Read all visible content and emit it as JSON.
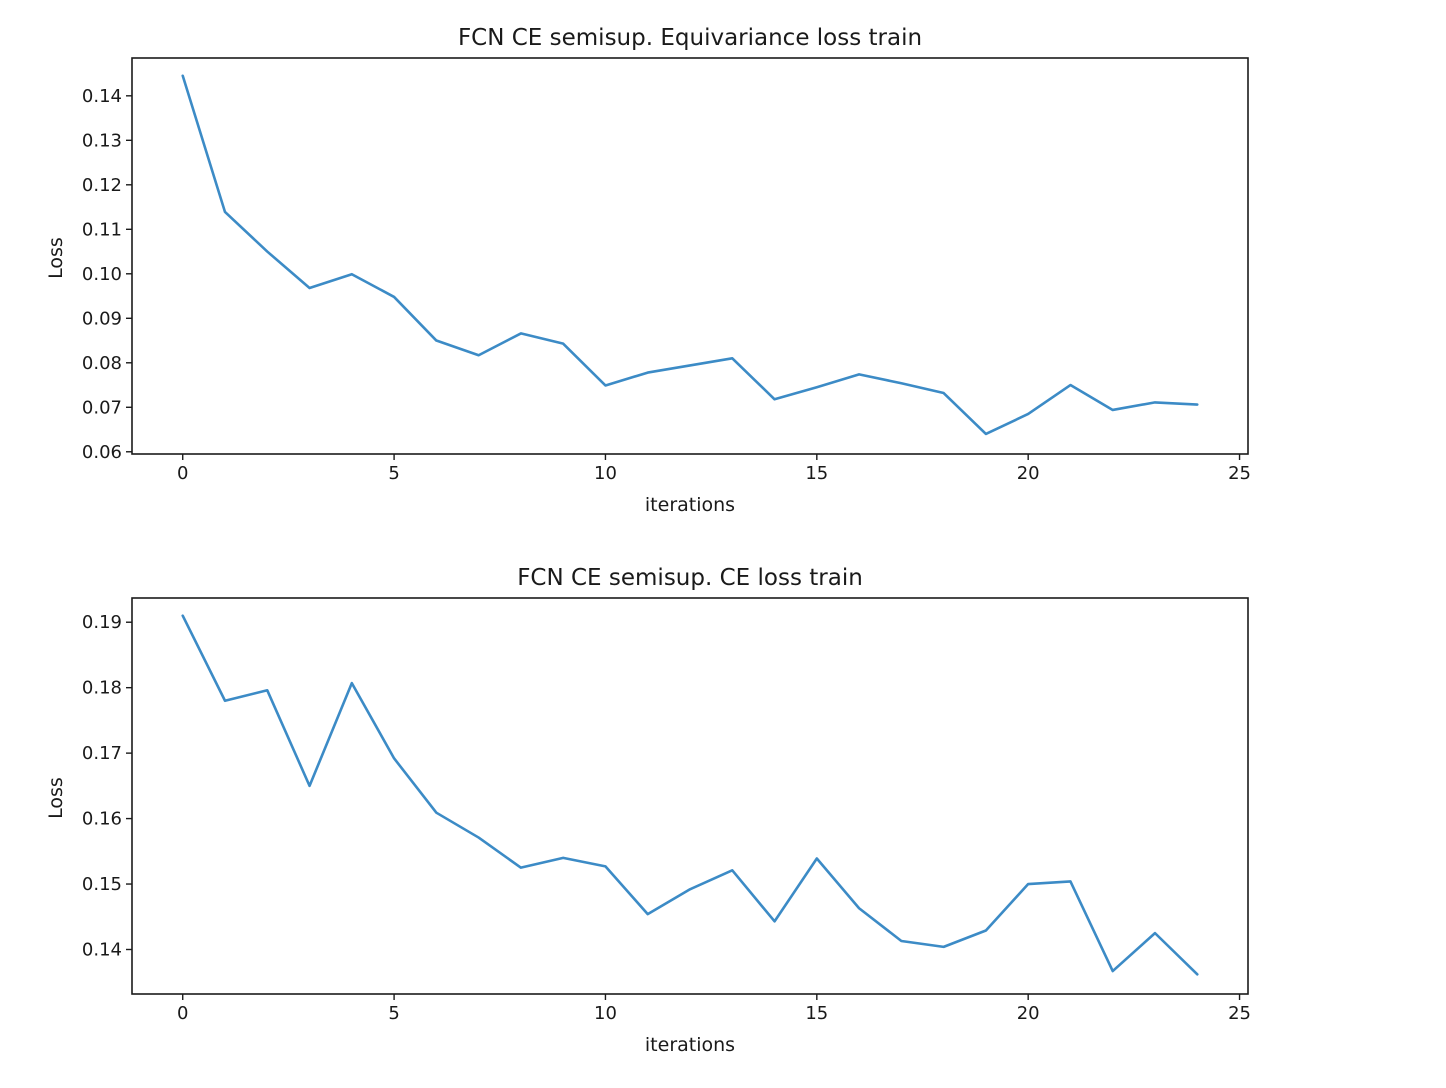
{
  "colors": {
    "line": "#3c8bc6",
    "axis": "#1a1a1a",
    "background": "#ffffff"
  },
  "chart_data": [
    {
      "type": "line",
      "title": "FCN CE semisup. Equivariance loss train",
      "xlabel": "iterations",
      "ylabel": "Loss",
      "xlim": [
        -1.2,
        25.2
      ],
      "ylim": [
        0.0595,
        0.1485
      ],
      "xticks": [
        0,
        5,
        10,
        15,
        20,
        25
      ],
      "xtick_labels": [
        "0",
        "5",
        "10",
        "15",
        "20",
        "25"
      ],
      "yticks": [
        0.06,
        0.07,
        0.08,
        0.09,
        0.1,
        0.11,
        0.12,
        0.13,
        0.14
      ],
      "ytick_labels": [
        "0.06",
        "0.07",
        "0.08",
        "0.09",
        "0.10",
        "0.11",
        "0.12",
        "0.13",
        "0.14"
      ],
      "grid": false,
      "series": [
        {
          "x": [
            0,
            1,
            2,
            3,
            4,
            5,
            6,
            7,
            8,
            9,
            10,
            11,
            12,
            13,
            14,
            15,
            16,
            17,
            18,
            19,
            20,
            21,
            22,
            23,
            24
          ],
          "values": [
            0.1445,
            0.1139,
            0.105,
            0.0968,
            0.0999,
            0.0948,
            0.085,
            0.0817,
            0.0866,
            0.0843,
            0.0749,
            0.0778,
            0.0794,
            0.081,
            0.0718,
            0.0745,
            0.0774,
            0.0754,
            0.0732,
            0.064,
            0.0685,
            0.075,
            0.0694,
            0.0711,
            0.0706
          ]
        }
      ]
    },
    {
      "type": "line",
      "title": "FCN CE semisup. CE loss train",
      "xlabel": "iterations",
      "ylabel": "Loss",
      "xlim": [
        -1.2,
        25.2
      ],
      "ylim": [
        0.1332,
        0.1937
      ],
      "xticks": [
        0,
        5,
        10,
        15,
        20,
        25
      ],
      "xtick_labels": [
        "0",
        "5",
        "10",
        "15",
        "20",
        "25"
      ],
      "yticks": [
        0.14,
        0.15,
        0.16,
        0.17,
        0.18,
        0.19
      ],
      "ytick_labels": [
        "0.14",
        "0.15",
        "0.16",
        "0.17",
        "0.18",
        "0.19"
      ],
      "grid": false,
      "series": [
        {
          "x": [
            0,
            1,
            2,
            3,
            4,
            5,
            6,
            7,
            8,
            9,
            10,
            11,
            12,
            13,
            14,
            15,
            16,
            17,
            18,
            19,
            20,
            21,
            22,
            23,
            24
          ],
          "values": [
            0.191,
            0.178,
            0.1796,
            0.165,
            0.1807,
            0.1692,
            0.1609,
            0.1571,
            0.1525,
            0.154,
            0.1527,
            0.1454,
            0.1492,
            0.1521,
            0.1443,
            0.1539,
            0.1463,
            0.1413,
            0.1404,
            0.1429,
            0.15,
            0.1504,
            0.1367,
            0.1425,
            0.1362
          ]
        }
      ]
    }
  ]
}
